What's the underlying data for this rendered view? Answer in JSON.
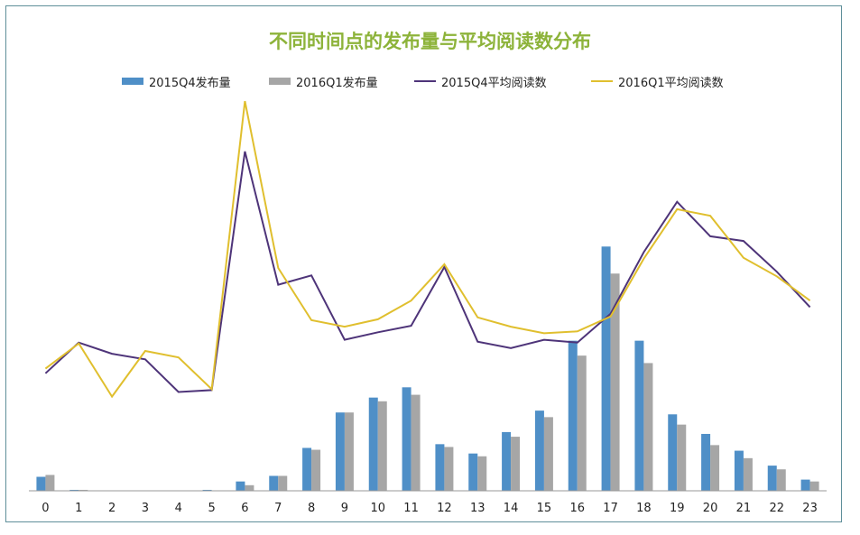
{
  "chart_data": {
    "type": "bar",
    "title": "不同时间点的发布量与平均阅读数分布",
    "categories": [
      "0",
      "1",
      "2",
      "3",
      "4",
      "5",
      "6",
      "7",
      "8",
      "9",
      "10",
      "11",
      "12",
      "13",
      "14",
      "15",
      "16",
      "17",
      "18",
      "19",
      "20",
      "21",
      "22",
      "23"
    ],
    "series": [
      {
        "name": "2015Q4发布量",
        "type": "bar",
        "color": "#4f8fc7",
        "values": [
          15,
          1,
          0,
          0,
          0,
          1,
          10,
          16,
          46,
          84,
          100,
          111,
          50,
          40,
          63,
          86,
          161,
          262,
          161,
          82,
          61,
          43,
          27,
          12
        ]
      },
      {
        "name": "2016Q1发布量",
        "type": "bar",
        "color": "#a6a6a6",
        "values": [
          17,
          1,
          0,
          0,
          0,
          0,
          6,
          16,
          44,
          84,
          96,
          103,
          47,
          37,
          58,
          79,
          145,
          233,
          137,
          71,
          49,
          35,
          23,
          10
        ]
      },
      {
        "name": "2015Q4平均阅读数",
        "type": "line",
        "color": "#4e3479",
        "values": [
          126,
          159,
          147,
          141,
          106,
          108,
          364,
          221,
          231,
          162,
          170,
          177,
          240,
          160,
          153,
          162,
          159,
          190,
          256,
          310,
          273,
          268,
          235,
          197
        ]
      },
      {
        "name": "2016Q1平均阅读数",
        "type": "line",
        "color": "#e0bf2e",
        "values": [
          131,
          158,
          101,
          150,
          143,
          109,
          418,
          239,
          183,
          176,
          184,
          204,
          243,
          186,
          176,
          169,
          171,
          187,
          249,
          302,
          295,
          250,
          230,
          204
        ]
      }
    ],
    "ylim": [
      0,
      420
    ],
    "grid": false,
    "legend": "top",
    "xlabel": "",
    "ylabel": ""
  }
}
